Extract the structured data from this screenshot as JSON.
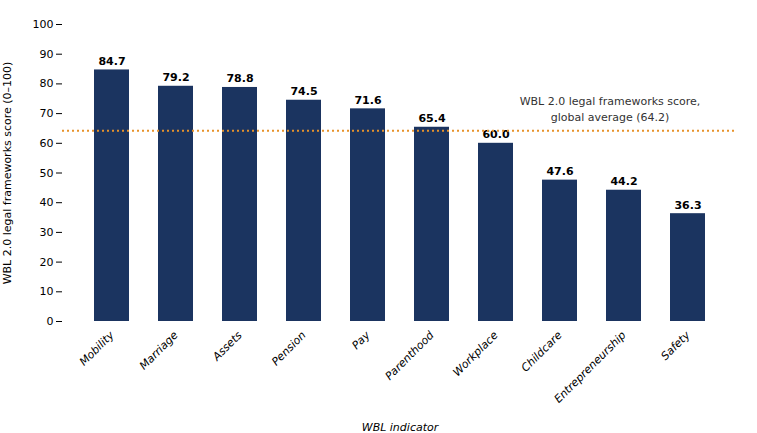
{
  "chart_data": {
    "type": "bar",
    "categories": [
      "Mobility",
      "Marriage",
      "Assets",
      "Pension",
      "Pay",
      "Parenthood",
      "Workplace",
      "Childcare",
      "Entrepreneurship",
      "Safety"
    ],
    "values": [
      84.7,
      79.2,
      78.8,
      74.5,
      71.6,
      65.4,
      60.0,
      47.6,
      44.2,
      36.3
    ],
    "value_labels": [
      "84.7",
      "79.2",
      "78.8",
      "74.5",
      "71.6",
      "65.4",
      "60.0",
      "47.6",
      "44.2",
      "36.3"
    ],
    "data_labels": true,
    "color": "#1b3460",
    "average_line": 64.2,
    "average_label": "WBL 2.0 legal frameworks score,\nglobal average (64.2)",
    "average_line_color": "#e8922a",
    "ylabel": "WBL 2.0 legal frameworks score (0–100)",
    "xlabel": "WBL indicator",
    "ylim": [
      0,
      100
    ],
    "yticks": [
      0,
      10,
      20,
      30,
      40,
      50,
      60,
      70,
      80,
      90,
      100
    ],
    "grid": false
  }
}
